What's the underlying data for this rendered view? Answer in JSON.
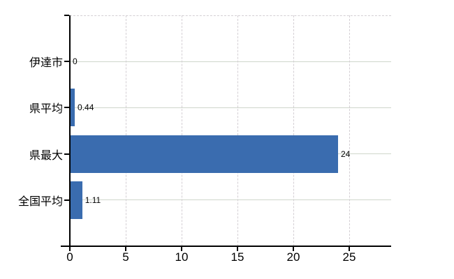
{
  "chart_data": {
    "type": "bar",
    "orientation": "horizontal",
    "title": "",
    "xlabel": "",
    "ylabel": "",
    "categories": [
      "伊達市",
      "県平均",
      "県最大",
      "全国平均"
    ],
    "values": [
      0,
      0.44,
      24,
      1.11
    ],
    "value_labels": [
      "0",
      "0.44",
      "24",
      "1.11"
    ],
    "xlim": [
      0,
      28.75
    ],
    "x_ticks": [
      0,
      5,
      10,
      15,
      20,
      25
    ],
    "x_tick_labels": [
      "0",
      "5",
      "10",
      "15",
      "20",
      "25"
    ],
    "legend": "none",
    "grid": {
      "vertical_lines": "dashed",
      "horizontal_lines": "solid",
      "top_border": "dashed"
    },
    "colors": {
      "bar": "#3A6CAF",
      "grid_horizontal": "#cfd6cb",
      "grid_vertical": "#d4cfd4",
      "axis": "#000000",
      "text": "#000000",
      "background": "#ffffff"
    }
  }
}
